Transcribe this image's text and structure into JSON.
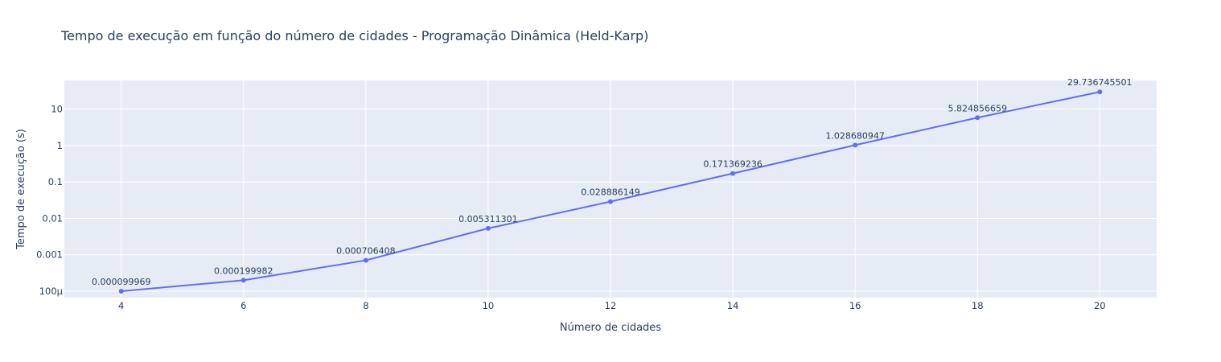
{
  "chart_data": {
    "type": "line",
    "title": "Tempo de execução em função do número de cidades - Programação Dinâmica (Held-Karp)",
    "xlabel": "Número de cidades",
    "ylabel": "Tempo de execução (s)",
    "x": [
      4,
      6,
      8,
      10,
      12,
      14,
      16,
      18,
      20
    ],
    "y": [
      9.9969e-05,
      0.000199982,
      0.000706408,
      0.005311301,
      0.028886149,
      0.171369236,
      1.028680947,
      5.824856659,
      29.736745501
    ],
    "data_labels": [
      "0.000099969",
      "0.000199982",
      "0.000706408",
      "0.005311301",
      "0.028886149",
      "0.171369236",
      "1.028680947",
      "5.824856659",
      "29.736745501"
    ],
    "x_ticks": [
      4,
      6,
      8,
      10,
      12,
      14,
      16,
      18,
      20
    ],
    "x_tick_labels": [
      "4",
      "6",
      "8",
      "10",
      "12",
      "14",
      "16",
      "18",
      "20"
    ],
    "y_ticks": [
      0.0001,
      0.001,
      0.01,
      0.1,
      1,
      10
    ],
    "y_tick_labels": [
      "100μ",
      "0.001",
      "0.01",
      "0.1",
      "1",
      "10"
    ],
    "xlim": [
      3.07,
      20.93
    ],
    "ylim": [
      6.66e-05,
      61.3
    ],
    "y_scale": "log",
    "grid": true,
    "colors": {
      "line": "#636efa",
      "plot_bg": "#e5ecf6",
      "grid": "#ffffff",
      "text": "#2a3f5f"
    }
  }
}
